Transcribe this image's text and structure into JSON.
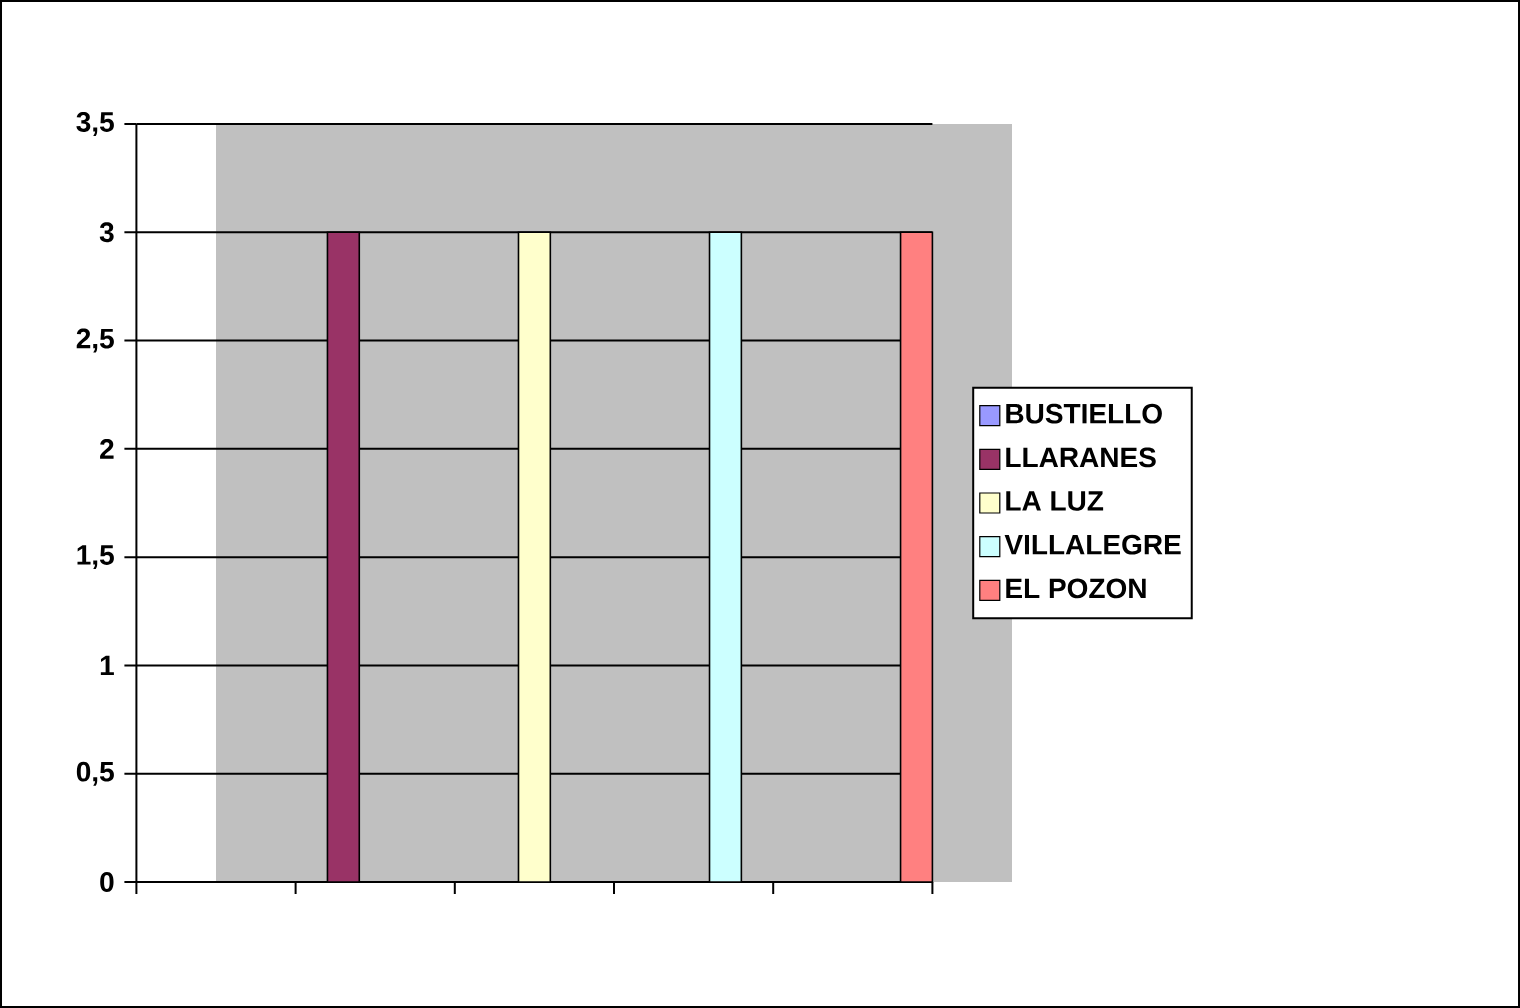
{
  "chart_data": {
    "type": "bar",
    "categories": [
      null,
      null,
      null,
      null,
      null
    ],
    "series": [
      {
        "name": "BUSTIELLO",
        "color": "#9999ff",
        "values": [
          0,
          null,
          null,
          null,
          null
        ]
      },
      {
        "name": "LLARANES",
        "color": "#993366",
        "values": [
          null,
          3,
          null,
          null,
          null
        ]
      },
      {
        "name": "LA LUZ",
        "color": "#ffffcc",
        "values": [
          null,
          null,
          3,
          null,
          null
        ]
      },
      {
        "name": "VILLALEGRE",
        "color": "#ccffff",
        "values": [
          null,
          null,
          null,
          3,
          null
        ]
      },
      {
        "name": "EL POZON",
        "color": "#ff8080",
        "values": [
          null,
          null,
          null,
          null,
          3
        ]
      }
    ],
    "ylim": [
      0,
      3.5
    ],
    "yticks": [
      0,
      {
        "value": 0.5,
        "label": "0,5"
      },
      1,
      {
        "value": 1.5,
        "label": "1,5"
      },
      2,
      {
        "value": 2.5,
        "label": "2,5"
      },
      3,
      {
        "value": 3.5,
        "label": "3,5"
      }
    ],
    "grid": "y",
    "legend": "right"
  }
}
